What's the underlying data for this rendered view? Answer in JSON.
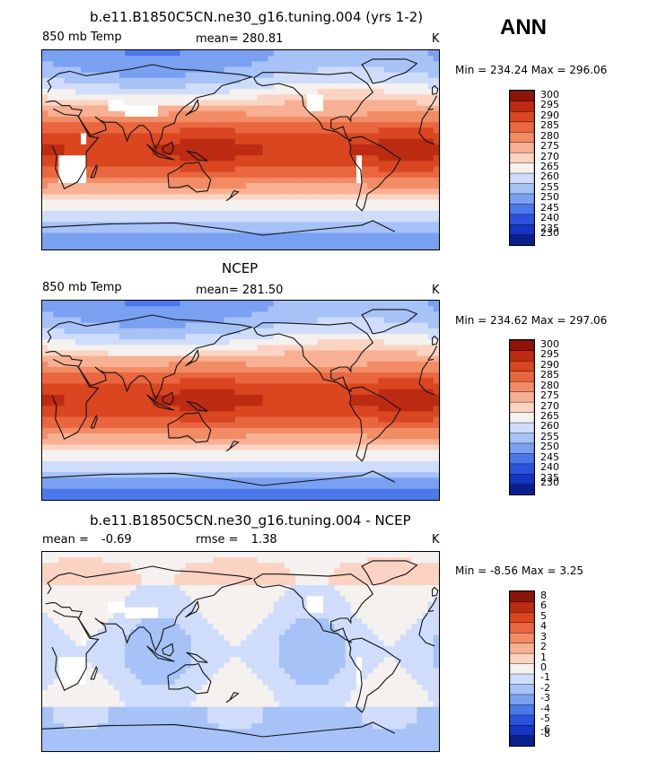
{
  "season": "ANN",
  "colors": {
    "abs_scale": [
      "#0a1f8f",
      "#1535c2",
      "#2a52de",
      "#4d78ec",
      "#7aa0f2",
      "#a6c2f7",
      "#cfddfa",
      "#f4f1ef",
      "#fbd3c2",
      "#f7b093",
      "#f28c65",
      "#e9663e",
      "#d9461f",
      "#bd2b12",
      "#8d1508"
    ],
    "diff_scale": [
      "#0a1f8f",
      "#1535c2",
      "#2a52de",
      "#4d78ec",
      "#7aa0f2",
      "#a6c2f7",
      "#cfddfa",
      "#f4f1ef",
      "#fbd3c2",
      "#f7b093",
      "#f28c65",
      "#e9663e",
      "#d9461f",
      "#bd2b12",
      "#8d1508"
    ],
    "missing": "#ffffff"
  },
  "chart_data": [
    {
      "type": "heatmap",
      "title": "b.e11.B1850C5CN.ne30_g16.tuning.004 (yrs 1-2)",
      "left_label": "850 mb Temp",
      "mean_label": "mean=",
      "mean_value": "280.81",
      "units": "K",
      "min_max": "Min = 234.24 Max = 296.06",
      "zmin": 234.24,
      "zmax": 296.06,
      "levels": [
        "230",
        "235",
        "240",
        "245",
        "250",
        "255",
        "260",
        "265",
        "270",
        "275",
        "280",
        "285",
        "290",
        "295",
        "300"
      ]
    },
    {
      "type": "heatmap",
      "title": "NCEP",
      "left_label": "850 mb Temp",
      "mean_label": "mean=",
      "mean_value": "281.50",
      "units": "K",
      "min_max": "Min = 234.62 Max = 297.06",
      "zmin": 234.62,
      "zmax": 297.06,
      "levels": [
        "230",
        "235",
        "240",
        "245",
        "250",
        "255",
        "260",
        "265",
        "270",
        "275",
        "280",
        "285",
        "290",
        "295",
        "300"
      ]
    },
    {
      "type": "heatmap",
      "title": "b.e11.B1850C5CN.ne30_g16.tuning.004 - NCEP",
      "left_label": "mean =",
      "mean_label": "rmse =",
      "left_value": "-0.69",
      "mean_value": "1.38",
      "units": "K",
      "min_max": "Min = -8.56 Max = 3.25",
      "zmin": -8.56,
      "zmax": 3.25,
      "levels": [
        "-8",
        "-6",
        "-5",
        "-4",
        "-3",
        "-2",
        "-1",
        "0",
        "1",
        "2",
        "3",
        "4",
        "5",
        "6",
        "8"
      ]
    }
  ]
}
